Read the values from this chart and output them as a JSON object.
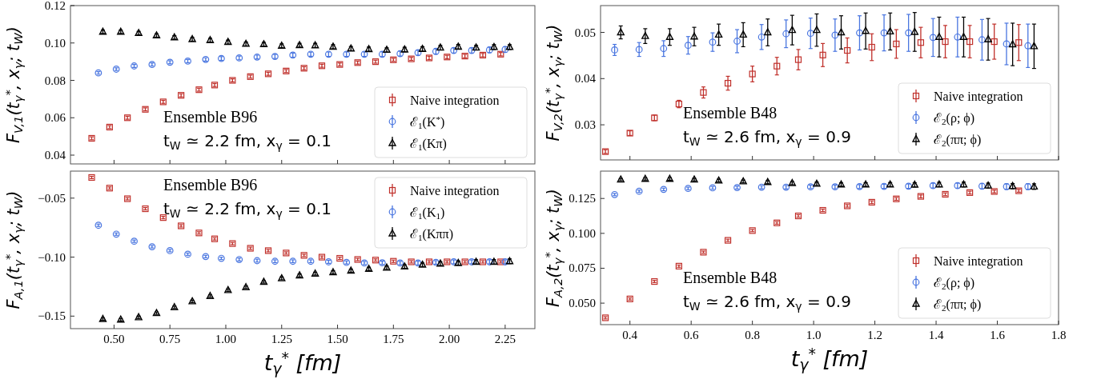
{
  "chart_data": [
    {
      "type": "scatter",
      "ylabel": "F$_{V,1}$(t$_{γ}$$^{*}$, x$_{γ}$; t$_{W}$)",
      "annotations": [
        "Ensemble B96",
        "t$_{W}$ ≃ 2.2 fm, x$_{γ}$ = 0.1"
      ],
      "xlim": [
        0.305,
        2.383
      ],
      "ylim": [
        0.0353,
        0.12
      ],
      "xticks": [
        {
          "value": 0.5,
          "label": null
        },
        {
          "value": 0.75,
          "label": null
        },
        {
          "value": 1.0,
          "label": null
        },
        {
          "value": 1.25,
          "label": null
        },
        {
          "value": 1.5,
          "label": null
        },
        {
          "value": 1.75,
          "label": null
        },
        {
          "value": 2.0,
          "label": null
        },
        {
          "value": 2.25,
          "label": null
        }
      ],
      "yticks": [
        0.04,
        0.06,
        0.08,
        {
          "value": 0.1,
          "label": "0.10"
        },
        0.12
      ],
      "tick_labels": "y",
      "legend": "bottom right",
      "grid": false,
      "series": [
        {
          "name": "Naive integration",
          "color": "#c0302b",
          "marker": "square",
          "x": [
            0.4,
            0.48,
            0.56,
            0.64,
            0.72,
            0.8,
            0.88,
            0.95,
            1.03,
            1.11,
            1.19,
            1.27,
            1.35,
            1.43,
            1.51,
            1.59,
            1.67,
            1.75,
            1.83,
            1.91,
            1.99,
            2.07,
            2.15,
            2.23
          ],
          "values": [
            0.049,
            0.055,
            0.06,
            0.0645,
            0.0685,
            0.072,
            0.075,
            0.0775,
            0.08,
            0.082,
            0.0835,
            0.085,
            0.0865,
            0.0878,
            0.0885,
            0.0895,
            0.09,
            0.091,
            0.0915,
            0.092,
            0.0925,
            0.093,
            0.0935,
            0.094
          ],
          "errors": [
            0.0008,
            0.0008,
            0.0008,
            0.0008,
            0.0008,
            0.0008,
            0.0008,
            0.0008,
            0.0008,
            0.0008,
            0.0008,
            0.0008,
            0.0008,
            0.0008,
            0.0008,
            0.0008,
            0.0008,
            0.0008,
            0.0008,
            0.0009,
            0.0009,
            0.0009,
            0.0009,
            0.0009
          ]
        },
        {
          "name": "ℰ$_{1}$(K$^{*}$)",
          "color": "#4a76e0",
          "marker": "circle",
          "x": [
            0.43,
            0.51,
            0.59,
            0.67,
            0.75,
            0.83,
            0.91,
            0.98,
            1.06,
            1.14,
            1.22,
            1.3,
            1.38,
            1.46,
            1.54,
            1.62,
            1.7,
            1.78,
            1.86,
            1.94,
            2.02,
            2.1,
            2.18,
            2.25
          ],
          "values": [
            0.084,
            0.086,
            0.0877,
            0.0885,
            0.0897,
            0.0903,
            0.0912,
            0.0917,
            0.092,
            0.0925,
            0.0928,
            0.0935,
            0.094,
            0.094,
            0.094,
            0.094,
            0.094,
            0.0943,
            0.0948,
            0.0955,
            0.096,
            0.096,
            0.0963,
            0.0965
          ],
          "errors": [
            0.0007,
            0.0007,
            0.0008,
            0.0008,
            0.0008,
            0.0009,
            0.0009,
            0.001,
            0.001,
            0.001,
            0.0011,
            0.0011,
            0.0011,
            0.0012,
            0.0012,
            0.0012,
            0.0013,
            0.0013,
            0.0013,
            0.0014,
            0.0014,
            0.0014,
            0.0015,
            0.0015
          ]
        },
        {
          "name": "ℰ$_{1}$(Kπ)",
          "color": "#000000",
          "marker": "triangle",
          "x": [
            0.45,
            0.53,
            0.61,
            0.69,
            0.77,
            0.85,
            0.93,
            1.01,
            1.09,
            1.17,
            1.25,
            1.33,
            1.4,
            1.48,
            1.56,
            1.64,
            1.72,
            1.8,
            1.88,
            1.96,
            2.04,
            2.12,
            2.2,
            2.27
          ],
          "values": [
            0.106,
            0.106,
            0.1053,
            0.104,
            0.103,
            0.102,
            0.1015,
            0.1005,
            0.0995,
            0.0993,
            0.0985,
            0.0988,
            0.0987,
            0.098,
            0.097,
            0.0967,
            0.0963,
            0.0965,
            0.0968,
            0.0975,
            0.098,
            0.0975,
            0.0978,
            0.0978
          ],
          "errors": [
            0.0009,
            0.0009,
            0.0009,
            0.0009,
            0.0009,
            0.001,
            0.001,
            0.001,
            0.001,
            0.001,
            0.001,
            0.001,
            0.0011,
            0.0011,
            0.0011,
            0.0011,
            0.0011,
            0.0012,
            0.0012,
            0.0012,
            0.0012,
            0.0012,
            0.0013,
            0.0013
          ]
        }
      ]
    },
    {
      "type": "scatter",
      "ylabel": "F$_{V,2}$(t$_{γ}$$^{*}$, x$_{γ}$; t$_{W}$)",
      "annotations": [
        "Ensemble B48",
        "t$_{W}$ ≃ 2.6 fm, x$_{γ}$ = 0.9"
      ],
      "xlim": [
        0.304,
        1.8
      ],
      "ylim": [
        0.0224,
        0.0558
      ],
      "xticks": [
        {
          "value": 0.4,
          "label": null
        },
        {
          "value": 0.6,
          "label": null
        },
        {
          "value": 0.8,
          "label": null
        },
        {
          "value": 1.0,
          "label": null
        },
        {
          "value": 1.2,
          "label": null
        },
        {
          "value": 1.4,
          "label": null
        },
        {
          "value": 1.6,
          "label": null
        },
        {
          "value": 1.8,
          "label": null
        }
      ],
      "yticks": [
        0.03,
        0.04,
        0.05
      ],
      "tick_labels": "y",
      "legend": "bottom right",
      "grid": false,
      "series": [
        {
          "name": "Naive integration",
          "color": "#c0302b",
          "marker": "square",
          "x": [
            0.32,
            0.4,
            0.48,
            0.56,
            0.64,
            0.72,
            0.8,
            0.88,
            0.95,
            1.03,
            1.11,
            1.19,
            1.27,
            1.35,
            1.43,
            1.51,
            1.59,
            1.67
          ],
          "values": [
            0.0242,
            0.0282,
            0.0315,
            0.0345,
            0.037,
            0.039,
            0.041,
            0.0427,
            0.0441,
            0.0451,
            0.0461,
            0.0468,
            0.0475,
            0.0478,
            0.048,
            0.048,
            0.048,
            0.0478
          ],
          "errors": [
            0.0004,
            0.0005,
            0.0006,
            0.0008,
            0.0012,
            0.0015,
            0.0017,
            0.0019,
            0.0022,
            0.0025,
            0.0027,
            0.0029,
            0.0031,
            0.0033,
            0.0035,
            0.0035,
            0.0038,
            0.0039
          ]
        },
        {
          "name": "ℰ$_{2}$(ρ; ϕ)",
          "color": "#4a76e0",
          "marker": "circle",
          "x": [
            0.35,
            0.43,
            0.51,
            0.59,
            0.67,
            0.75,
            0.83,
            0.91,
            0.99,
            1.07,
            1.15,
            1.23,
            1.31,
            1.39,
            1.47,
            1.55,
            1.63,
            1.7
          ],
          "values": [
            0.0462,
            0.0463,
            0.0465,
            0.0472,
            0.0479,
            0.0481,
            0.049,
            0.0497,
            0.0498,
            0.0494,
            0.0499,
            0.0499,
            0.0499,
            0.0489,
            0.049,
            0.0484,
            0.0475,
            0.0471
          ],
          "errors": [
            0.0012,
            0.0015,
            0.0017,
            0.0019,
            0.002,
            0.0025,
            0.0027,
            0.003,
            0.0033,
            0.0035,
            0.0037,
            0.0039,
            0.004,
            0.0041,
            0.0043,
            0.0044,
            0.0045,
            0.0047
          ]
        },
        {
          "name": "ℰ$_{2}$(ππ; ϕ)",
          "color": "#000000",
          "marker": "triangle",
          "x": [
            0.37,
            0.45,
            0.53,
            0.61,
            0.69,
            0.77,
            0.85,
            0.93,
            1.01,
            1.09,
            1.17,
            1.25,
            1.33,
            1.41,
            1.49,
            1.57,
            1.65,
            1.72
          ],
          "values": [
            0.05,
            0.0492,
            0.049,
            0.0491,
            0.0495,
            0.0495,
            0.05,
            0.0505,
            0.0505,
            0.05,
            0.0503,
            0.0502,
            0.0501,
            0.049,
            0.049,
            0.0485,
            0.0474,
            0.047
          ],
          "errors": [
            0.0014,
            0.0016,
            0.0018,
            0.002,
            0.0023,
            0.0026,
            0.0029,
            0.0032,
            0.0035,
            0.0036,
            0.0039,
            0.004,
            0.0042,
            0.0043,
            0.0043,
            0.0045,
            0.0046,
            0.0048
          ]
        }
      ]
    },
    {
      "type": "scatter",
      "xlabel": "t$_{γ}$$^{*}$ [fm]",
      "ylabel": "F$_{A,1}$(t$_{γ}$$^{*}$, x$_{γ}$; t$_{W}$)",
      "annotations": [
        "Ensemble B96",
        "t$_{W}$ ≃ 2.2 fm, x$_{γ}$ = 0.1"
      ],
      "xlim": [
        0.305,
        2.383
      ],
      "ylim": [
        -0.1606,
        -0.0271
      ],
      "xticks": [
        {
          "value": 0.5,
          "label": "0.50"
        },
        0.75,
        {
          "value": 1.0,
          "label": "1.00"
        },
        1.25,
        {
          "value": 1.5,
          "label": "1.50"
        },
        1.75,
        {
          "value": 2.0,
          "label": "2.00"
        },
        2.25
      ],
      "yticks": [
        {
          "value": -0.05,
          "label": "−0.05"
        },
        {
          "value": -0.1,
          "label": "−0.10"
        },
        {
          "value": -0.15,
          "label": "−0.15"
        }
      ],
      "legend": "top right",
      "grid": false,
      "series": [
        {
          "name": "Naive integration",
          "color": "#c0302b",
          "marker": "square",
          "x": [
            0.4,
            0.48,
            0.56,
            0.64,
            0.72,
            0.8,
            0.88,
            0.95,
            1.03,
            1.11,
            1.19,
            1.27,
            1.35,
            1.43,
            1.51,
            1.59,
            1.67,
            1.75,
            1.83,
            1.91,
            1.99,
            2.07,
            2.15,
            2.23
          ],
          "values": [
            -0.0325,
            -0.0415,
            -0.0505,
            -0.059,
            -0.0665,
            -0.0735,
            -0.0795,
            -0.0845,
            -0.0885,
            -0.0925,
            -0.0945,
            -0.0965,
            -0.0985,
            -0.1,
            -0.101,
            -0.102,
            -0.1025,
            -0.1035,
            -0.104,
            -0.104,
            -0.104,
            -0.104,
            -0.104,
            -0.104
          ],
          "errors": [
            0.001,
            0.001,
            0.001,
            0.001,
            0.001,
            0.001,
            0.001,
            0.001,
            0.001,
            0.001,
            0.001,
            0.001,
            0.001,
            0.001,
            0.001,
            0.001,
            0.001,
            0.001,
            0.001,
            0.001,
            0.001,
            0.001,
            0.001,
            0.001
          ]
        },
        {
          "name": "ℰ$_{1}$(K$_{1}$)",
          "color": "#4a76e0",
          "marker": "circle",
          "x": [
            0.43,
            0.51,
            0.59,
            0.67,
            0.75,
            0.83,
            0.91,
            0.98,
            1.06,
            1.14,
            1.22,
            1.3,
            1.38,
            1.46,
            1.54,
            1.62,
            1.7,
            1.78,
            1.86,
            1.94,
            2.02,
            2.1,
            2.18,
            2.25
          ],
          "values": [
            -0.073,
            -0.0805,
            -0.0865,
            -0.0912,
            -0.0945,
            -0.0975,
            -0.0995,
            -0.101,
            -0.102,
            -0.103,
            -0.1035,
            -0.1035,
            -0.1035,
            -0.104,
            -0.1045,
            -0.105,
            -0.1048,
            -0.105,
            -0.105,
            -0.1045,
            -0.104,
            -0.104,
            -0.104,
            -0.104
          ],
          "errors": [
            0.001,
            0.001,
            0.001,
            0.001,
            0.001,
            0.001,
            0.001,
            0.001,
            0.0012,
            0.0012,
            0.0012,
            0.0012,
            0.0012,
            0.0013,
            0.0013,
            0.0013,
            0.0014,
            0.0014,
            0.0015,
            0.0015,
            0.0016,
            0.0016,
            0.0017,
            0.0017
          ]
        },
        {
          "name": "ℰ$_{1}$(Kππ)",
          "color": "#000000",
          "marker": "triangle",
          "x": [
            0.45,
            0.53,
            0.61,
            0.69,
            0.77,
            0.85,
            0.93,
            1.01,
            1.09,
            1.17,
            1.25,
            1.33,
            1.4,
            1.48,
            1.56,
            1.64,
            1.72,
            1.8,
            1.88,
            1.96,
            2.04,
            2.12,
            2.2,
            2.27
          ],
          "values": [
            -0.1525,
            -0.153,
            -0.151,
            -0.1475,
            -0.1425,
            -0.1375,
            -0.133,
            -0.128,
            -0.1255,
            -0.121,
            -0.118,
            -0.1155,
            -0.114,
            -0.1128,
            -0.1115,
            -0.11,
            -0.109,
            -0.108,
            -0.1065,
            -0.1055,
            -0.105,
            -0.104,
            -0.104,
            -0.1035
          ],
          "errors": [
            0.001,
            0.001,
            0.001,
            0.001,
            0.001,
            0.001,
            0.001,
            0.001,
            0.001,
            0.001,
            0.0012,
            0.0012,
            0.0012,
            0.0013,
            0.0013,
            0.0014,
            0.0014,
            0.0015,
            0.0015,
            0.0016,
            0.0017,
            0.0018,
            0.0019,
            0.002
          ]
        }
      ]
    },
    {
      "type": "scatter",
      "xlabel": "t$_{γ}$$^{*}$ [fm]",
      "ylabel": "F$_{A,2}$(t$_{γ}$$^{*}$, x$_{γ}$; t$_{W}$)",
      "annotations": [
        "Ensemble B48",
        "t$_{W}$ ≃ 2.6 fm, x$_{γ}$ = 0.9"
      ],
      "xlim": [
        0.304,
        1.8
      ],
      "ylim": [
        0.0346,
        0.1446
      ],
      "xticks": [
        0.4,
        0.6,
        0.8,
        {
          "value": 1.0,
          "label": "1.0"
        },
        1.2,
        1.4,
        1.6,
        1.8
      ],
      "yticks": [
        {
          "value": 0.05,
          "label": "0.050"
        },
        0.075,
        {
          "value": 0.1,
          "label": "0.100"
        },
        0.125
      ],
      "legend": "bottom right",
      "grid": false,
      "series": [
        {
          "name": "Naive integration",
          "color": "#c0302b",
          "marker": "square",
          "x": [
            0.32,
            0.4,
            0.48,
            0.56,
            0.64,
            0.72,
            0.8,
            0.88,
            0.95,
            1.03,
            1.11,
            1.19,
            1.27,
            1.35,
            1.43,
            1.51,
            1.59,
            1.67
          ],
          "values": [
            0.0395,
            0.053,
            0.0655,
            0.0765,
            0.0865,
            0.095,
            0.102,
            0.1075,
            0.1125,
            0.1165,
            0.1197,
            0.1223,
            0.1247,
            0.1265,
            0.128,
            0.1292,
            0.13,
            0.1305
          ],
          "errors": [
            0.0008,
            0.0008,
            0.0008,
            0.0008,
            0.0008,
            0.0008,
            0.0008,
            0.0009,
            0.0009,
            0.0009,
            0.0009,
            0.001,
            0.001,
            0.001,
            0.001,
            0.001,
            0.001,
            0.001
          ]
        },
        {
          "name": "ℰ$_{2}$(ρ; ϕ)",
          "color": "#4a76e0",
          "marker": "circle",
          "x": [
            0.35,
            0.43,
            0.51,
            0.59,
            0.67,
            0.75,
            0.83,
            0.91,
            0.99,
            1.07,
            1.15,
            1.23,
            1.31,
            1.39,
            1.47,
            1.55,
            1.63,
            1.7
          ],
          "values": [
            0.1278,
            0.1302,
            0.1315,
            0.1322,
            0.1326,
            0.1328,
            0.1331,
            0.1331,
            0.1333,
            0.1333,
            0.1335,
            0.1337,
            0.1338,
            0.1342,
            0.1342,
            0.1338,
            0.1335,
            0.1335
          ],
          "errors": [
            0.0008,
            0.0008,
            0.0009,
            0.0009,
            0.001,
            0.001,
            0.0011,
            0.0012,
            0.0012,
            0.0013,
            0.0014,
            0.0015,
            0.0016,
            0.0017,
            0.0018,
            0.0019,
            0.002,
            0.0021
          ]
        },
        {
          "name": "ℰ$_{2}$(ππ; ϕ)",
          "color": "#000000",
          "marker": "triangle",
          "x": [
            0.37,
            0.45,
            0.53,
            0.61,
            0.69,
            0.77,
            0.85,
            0.93,
            1.01,
            1.09,
            1.17,
            1.25,
            1.33,
            1.41,
            1.49,
            1.57,
            1.65,
            1.72
          ],
          "values": [
            0.1385,
            0.139,
            0.139,
            0.1385,
            0.1378,
            0.1372,
            0.1367,
            0.136,
            0.1355,
            0.135,
            0.135,
            0.135,
            0.1348,
            0.135,
            0.135,
            0.1342,
            0.1338,
            0.1335
          ],
          "errors": [
            0.0008,
            0.0008,
            0.0009,
            0.0009,
            0.001,
            0.001,
            0.0011,
            0.0011,
            0.0012,
            0.0012,
            0.0013,
            0.0014,
            0.0015,
            0.0016,
            0.0017,
            0.0018,
            0.0019,
            0.002
          ]
        }
      ]
    }
  ]
}
